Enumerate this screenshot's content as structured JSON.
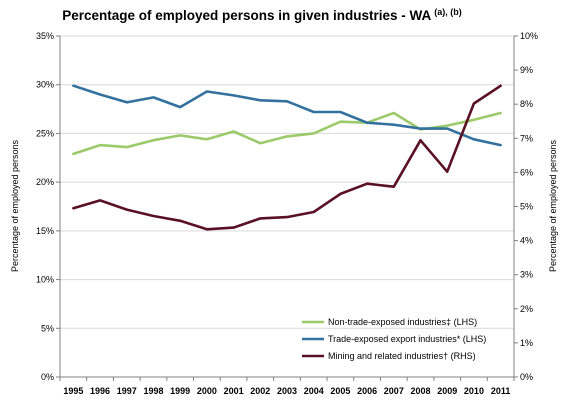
{
  "chart_data": {
    "type": "line",
    "title": "Percentage of employed persons in given industries - WA",
    "title_superscript": "(a), (b)",
    "ylabel_left": "Percentage of employed persons",
    "ylabel_right": "Percentage of employed persons",
    "x": [
      "1995",
      "1996",
      "1997",
      "1998",
      "1999",
      "2000",
      "2001",
      "2002",
      "2003",
      "2004",
      "2005",
      "2006",
      "2007",
      "2008",
      "2009",
      "2010",
      "2011"
    ],
    "ylim_left": [
      0,
      35
    ],
    "yticks_left": [
      "0%",
      "5%",
      "10%",
      "15%",
      "20%",
      "25%",
      "30%",
      "35%"
    ],
    "ylim_right": [
      0,
      10
    ],
    "yticks_right": [
      "0%",
      "1%",
      "2%",
      "3%",
      "4%",
      "5%",
      "6%",
      "7%",
      "8%",
      "9%",
      "10%"
    ],
    "grid": true,
    "legend_position": "bottom-right",
    "series": [
      {
        "name": "Non-trade-exposed industries‡ (LHS)",
        "axis": "left",
        "color": "#9bca6b",
        "values": [
          22.9,
          23.8,
          23.6,
          24.3,
          24.8,
          24.4,
          25.2,
          24.0,
          24.7,
          25.0,
          26.2,
          26.1,
          27.1,
          25.4,
          25.8,
          26.4,
          27.1
        ]
      },
      {
        "name": "Trade-exposed export industries* (LHS)",
        "axis": "left",
        "color": "#33729f",
        "values": [
          29.9,
          29.0,
          28.2,
          28.7,
          27.7,
          29.3,
          28.9,
          28.4,
          28.3,
          27.2,
          27.2,
          26.1,
          25.9,
          25.5,
          25.5,
          24.4,
          23.8
        ]
      },
      {
        "name": "Mining and related industries† (RHS)",
        "axis": "right",
        "color": "#5a1124",
        "values": [
          4.95,
          5.18,
          4.91,
          4.72,
          4.58,
          4.33,
          4.38,
          4.65,
          4.69,
          4.84,
          5.37,
          5.67,
          5.58,
          6.94,
          6.02,
          8.02,
          8.54
        ]
      }
    ]
  }
}
